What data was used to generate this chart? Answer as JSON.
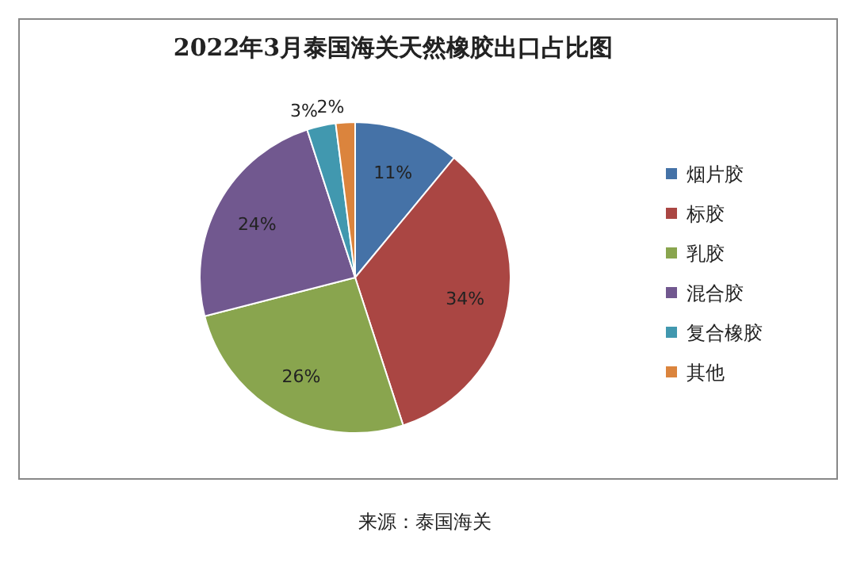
{
  "chart_data": {
    "type": "pie",
    "title": "2022年3月泰国海关天然橡胶出口占比图",
    "categories": [
      "烟片胶",
      "标胶",
      "乳胶",
      "混合胶",
      "复合橡胶",
      "其他"
    ],
    "values": [
      11,
      34,
      26,
      24,
      3,
      2
    ],
    "colors": [
      "#4572a7",
      "#aa4643",
      "#89a54e",
      "#71588f",
      "#4198af",
      "#db843d"
    ],
    "value_labels": [
      "11%",
      "34%",
      "26%",
      "24%",
      "3%",
      "2%"
    ],
    "legend": "right",
    "annotations": [
      "来源：泰国海关"
    ]
  }
}
